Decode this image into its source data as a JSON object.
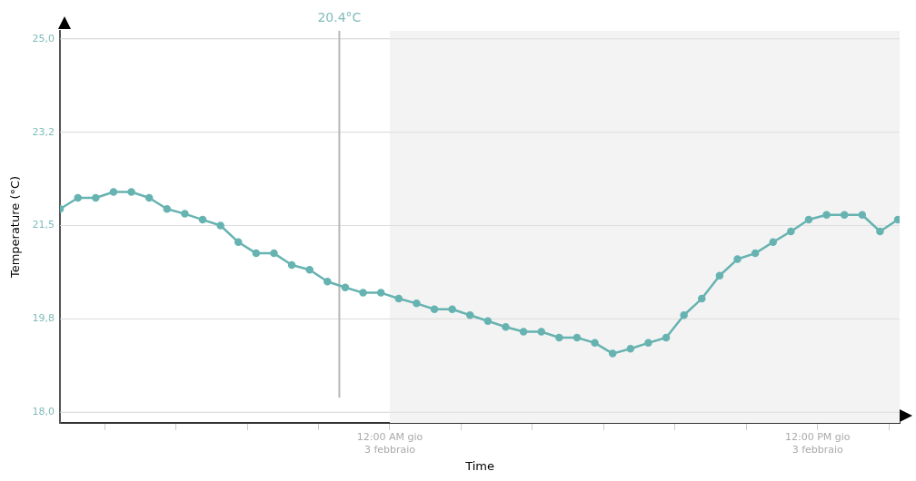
{
  "chart_data": {
    "type": "line",
    "xlabel": "Time",
    "ylabel": "Temperature (°C)",
    "x": [
      "--02-02T14:45",
      "--02-02T15:15",
      "--02-02T15:45",
      "--02-02T16:15",
      "--02-02T16:45",
      "--02-02T17:15",
      "--02-02T17:45",
      "--02-02T18:15",
      "--02-02T18:45",
      "--02-02T19:15",
      "--02-02T19:45",
      "--02-02T20:15",
      "--02-02T20:45",
      "--02-02T21:15",
      "--02-02T21:45",
      "--02-02T22:15",
      "--02-02T22:45",
      "--02-02T23:15",
      "--02-02T23:45",
      "--02-03T00:15",
      "--02-03T00:45",
      "--02-03T01:15",
      "--02-03T01:45",
      "--02-03T02:15",
      "--02-03T02:45",
      "--02-03T03:15",
      "--02-03T03:45",
      "--02-03T04:15",
      "--02-03T04:45",
      "--02-03T05:15",
      "--02-03T05:45",
      "--02-03T06:15",
      "--02-03T06:45",
      "--02-03T07:15",
      "--02-03T07:45",
      "--02-03T08:15",
      "--02-03T08:45",
      "--02-03T09:15",
      "--02-03T09:45",
      "--02-03T10:15",
      "--02-03T10:45",
      "--02-03T11:15",
      "--02-03T11:45",
      "--02-03T12:15",
      "--02-03T12:45",
      "--02-03T13:15",
      "--02-03T13:45",
      "--02-03T14:15"
    ],
    "series": [
      {
        "color": "#66b3b1",
        "values": [
          21.81,
          22.02,
          22.02,
          22.13,
          22.13,
          22.02,
          21.81,
          21.72,
          21.61,
          21.5,
          21.19,
          20.98,
          20.98,
          20.76,
          20.67,
          20.45,
          20.34,
          20.24,
          20.24,
          20.13,
          20.04,
          19.93,
          19.93,
          19.82,
          19.71,
          19.6,
          19.51,
          19.51,
          19.4,
          19.4,
          19.3,
          19.1,
          19.19,
          19.3,
          19.4,
          19.82,
          20.13,
          20.56,
          20.87,
          20.98,
          21.19,
          21.39,
          21.61,
          21.7,
          21.7,
          21.7,
          21.39,
          21.61
        ]
      }
    ],
    "xlim": [
      "--02-02T14:45",
      "--02-03T14:18"
    ],
    "xticks": [
      {
        "value": "--02-02T16:00",
        "label": null
      },
      {
        "value": "--02-02T18:00",
        "label": null
      },
      {
        "value": "--02-02T20:00",
        "label": null
      },
      {
        "value": "--02-02T22:00",
        "label": null
      },
      {
        "value": "--02-03T00:00",
        "label": "12:00 AM gio\n3 febbraio"
      },
      {
        "value": "--02-03T02:00",
        "label": null
      },
      {
        "value": "--02-03T04:00",
        "label": null
      },
      {
        "value": "--02-03T06:00",
        "label": null
      },
      {
        "value": "--02-03T08:00",
        "label": null
      },
      {
        "value": "--02-03T10:00",
        "label": null
      },
      {
        "value": "--02-03T12:00",
        "label": "12:00 PM gio\n3 febbraio"
      },
      {
        "value": "--02-03T14:00",
        "label": null
      }
    ],
    "ylim": [
      17.8,
      25.15
    ],
    "yticks": [
      {
        "value": 18,
        "label": "18,0"
      },
      {
        "value": 19.75,
        "label": "19,8"
      },
      {
        "value": 21.5,
        "label": "21,5"
      },
      {
        "value": 23.25,
        "label": "23,2"
      },
      {
        "value": 25,
        "label": "25,0"
      }
    ],
    "ref_lines": [
      {
        "axis": "x",
        "value": "--02-02T22:35",
        "label": "20.4°C",
        "color": "#b8b8b8"
      }
    ],
    "bands": [
      {
        "axis": "x",
        "from": "--02-03T00:00",
        "to": "--02-03T14:18",
        "color": "#f3f3f3"
      }
    ],
    "grid": "y",
    "legend": false,
    "marker": "circle",
    "line_style": "solid"
  }
}
